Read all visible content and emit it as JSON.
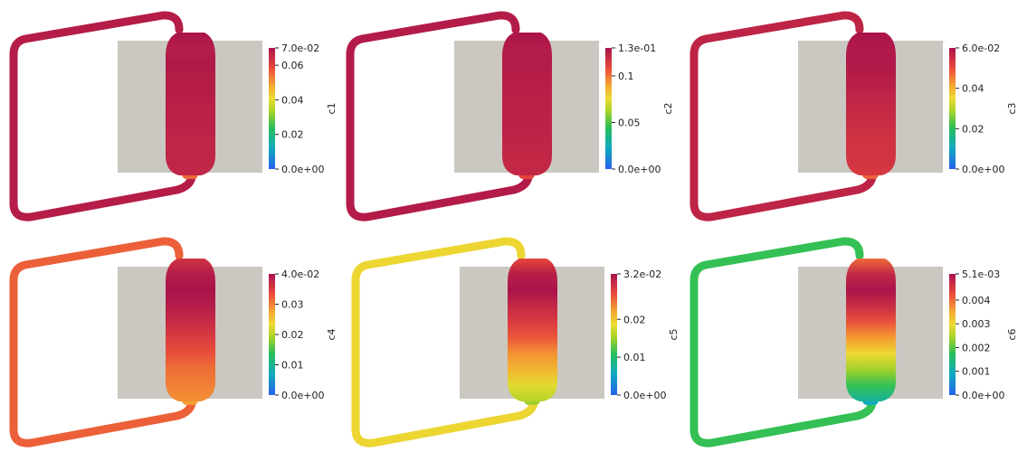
{
  "panels": [
    {
      "title": "c1",
      "ticks": [
        "7.0e-02",
        "0.06",
        "0.04",
        "0.02",
        "0.0e+00"
      ],
      "tick_values": [
        0.07,
        0.06,
        0.04,
        0.02,
        0.0
      ],
      "range": [
        0.0,
        0.07
      ],
      "loop_value": 0.068,
      "vessel_profile": [
        0.07,
        0.068,
        0.069,
        0.068,
        0.068,
        0.067,
        0.067,
        0.066,
        0.066,
        0.066
      ],
      "neck_value": 0.055
    },
    {
      "title": "c2",
      "ticks": [
        "1.3e-01",
        "0.1",
        "0.05",
        "0.0e+00"
      ],
      "tick_values": [
        0.13,
        0.1,
        0.05,
        0.0
      ],
      "range": [
        0.0,
        0.13
      ],
      "loop_value": 0.127,
      "vessel_profile": [
        0.13,
        0.127,
        0.127,
        0.126,
        0.125,
        0.124,
        0.124,
        0.123,
        0.122,
        0.122
      ],
      "neck_value": 0.11
    },
    {
      "title": "c3",
      "ticks": [
        "6.0e-02",
        "0.04",
        "0.02",
        "0.0e+00"
      ],
      "tick_values": [
        0.06,
        0.04,
        0.02,
        0.0
      ],
      "range": [
        0.0,
        0.06
      ],
      "loop_value": 0.057,
      "vessel_profile": [
        0.06,
        0.059,
        0.059,
        0.058,
        0.057,
        0.056,
        0.055,
        0.054,
        0.054,
        0.053
      ],
      "neck_value": 0.048
    },
    {
      "title": "c4",
      "ticks": [
        "4.0e-02",
        "0.03",
        "0.02",
        "0.01",
        "0.0e+00"
      ],
      "tick_values": [
        0.04,
        0.03,
        0.02,
        0.01,
        0.0
      ],
      "range": [
        0.0,
        0.04
      ],
      "loop_value": 0.032,
      "vessel_profile": [
        0.036,
        0.039,
        0.04,
        0.039,
        0.037,
        0.035,
        0.033,
        0.031,
        0.03,
        0.029
      ],
      "neck_value": 0.028
    },
    {
      "title": "c5",
      "ticks": [
        "3.2e-02",
        "0.02",
        "0.01",
        "0.0e+00"
      ],
      "tick_values": [
        0.032,
        0.02,
        0.01,
        0.0
      ],
      "range": [
        0.0,
        0.032
      ],
      "loop_value": 0.019,
      "vessel_profile": [
        0.027,
        0.031,
        0.032,
        0.03,
        0.028,
        0.026,
        0.023,
        0.021,
        0.018,
        0.016
      ],
      "neck_value": 0.015
    },
    {
      "title": "c6",
      "ticks": [
        "5.1e-03",
        "0.004",
        "0.003",
        "0.002",
        "0.001",
        "0.0e+00"
      ],
      "tick_values": [
        0.0051,
        0.004,
        0.003,
        0.002,
        0.001,
        0.0
      ],
      "range": [
        0.0,
        0.0051
      ],
      "loop_value": 0.0018,
      "vessel_profile": [
        0.004,
        0.0048,
        0.0051,
        0.0047,
        0.0042,
        0.0036,
        0.003,
        0.0024,
        0.0018,
        0.0012
      ],
      "neck_value": 0.0009
    }
  ]
}
